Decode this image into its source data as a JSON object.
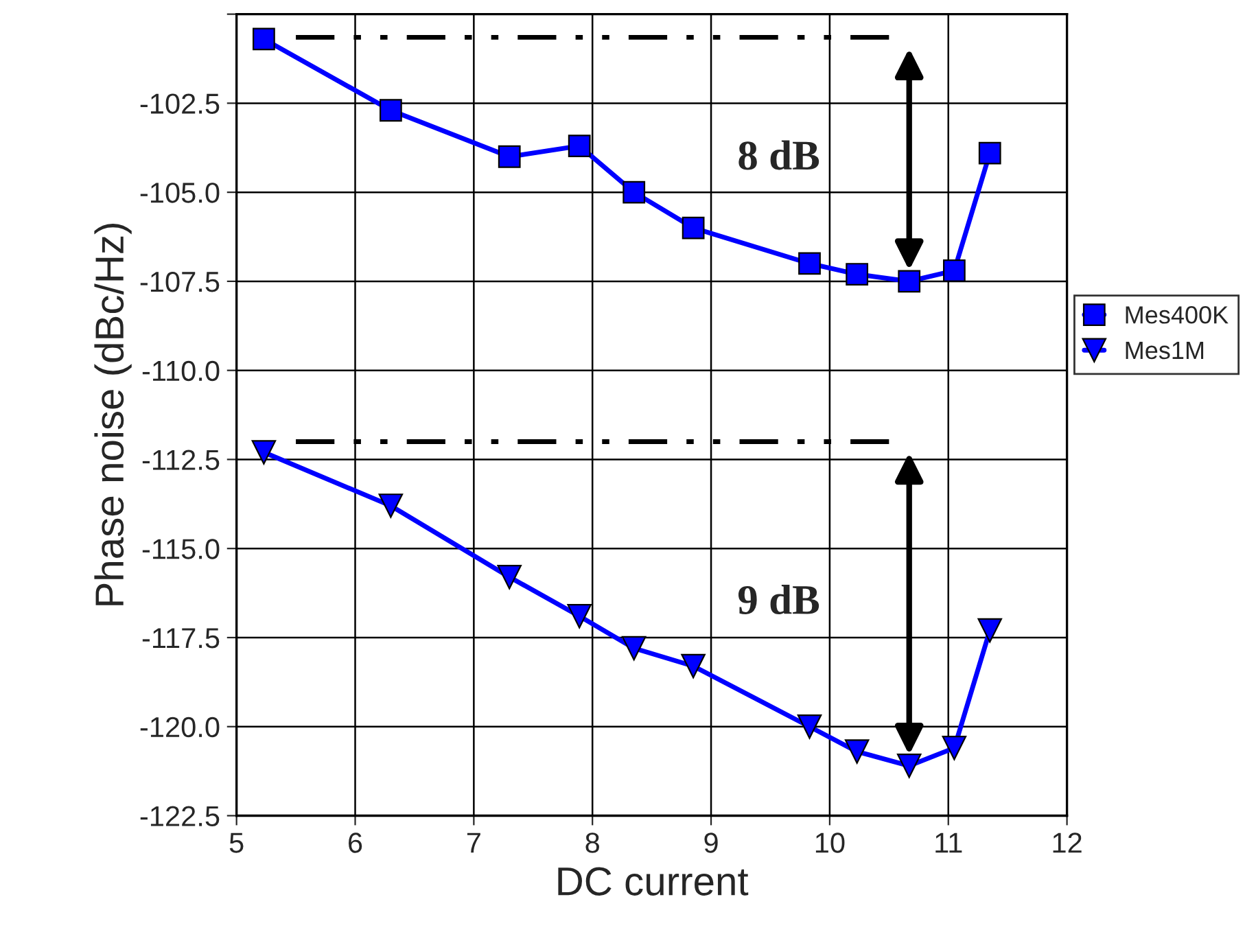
{
  "chart_data": {
    "type": "line",
    "xlabel": "DC current",
    "ylabel": "Phase noise (dBc/Hz)",
    "xlim": [
      5,
      12
    ],
    "xticks": [
      5,
      6,
      7,
      8,
      9,
      10,
      11,
      12
    ],
    "ylim": [
      -122.5,
      -100
    ],
    "yticks": [
      {
        "value": -122.5,
        "label": "-122.5"
      },
      {
        "value": -120,
        "label": "-120.0"
      },
      {
        "value": -117.5,
        "label": "-117.5"
      },
      {
        "value": -115,
        "label": "-115.0"
      },
      {
        "value": -112.5,
        "label": "-112.5"
      },
      {
        "value": -110,
        "label": "-110.0"
      },
      {
        "value": -107.5,
        "label": "-107.5"
      },
      {
        "value": -105,
        "label": "-105.0"
      },
      {
        "value": -102.5,
        "label": "-102.5"
      },
      {
        "value": -100,
        "label": null
      }
    ],
    "grid": true,
    "legend": "right",
    "series": [
      {
        "name": "Mes400K",
        "color": "#0000ff",
        "marker": "square",
        "x": [
          5.23,
          6.3,
          7.3,
          7.89,
          8.35,
          8.85,
          9.83,
          10.23,
          10.67,
          11.05,
          11.35
        ],
        "values": [
          -100.7,
          -102.7,
          -104.0,
          -103.7,
          -105.0,
          -106.0,
          -107.0,
          -107.3,
          -107.5,
          -107.2,
          -103.9
        ]
      },
      {
        "name": "Mes1M",
        "color": "#0000ff",
        "marker": "triangle",
        "x": [
          5.23,
          6.3,
          7.3,
          7.89,
          8.35,
          8.85,
          9.83,
          10.23,
          10.67,
          11.05,
          11.35
        ],
        "values": [
          -112.3,
          -113.8,
          -115.8,
          -116.9,
          -117.8,
          -118.3,
          -120.0,
          -120.7,
          -121.1,
          -120.6,
          -117.3
        ]
      },
      {
        "color": "#000000",
        "line_style": "dashed",
        "x": [
          5.5,
          10.5
        ],
        "values": [
          -100.65,
          -100.65
        ]
      },
      {
        "color": "#000000",
        "line_style": "dashed",
        "x": [
          5.5,
          10.5
        ],
        "values": [
          -112.0,
          -112.0
        ]
      }
    ],
    "annotations": [
      "8 dB",
      "9 dB"
    ]
  }
}
